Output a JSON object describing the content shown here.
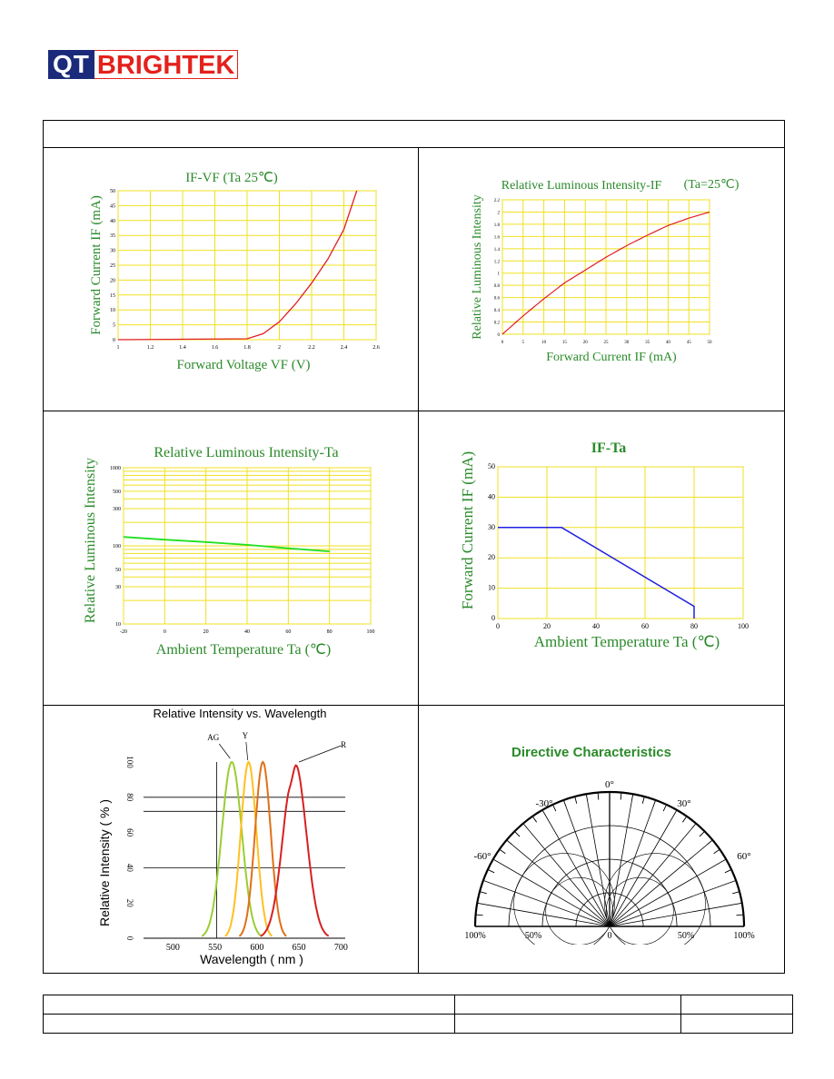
{
  "logo": {
    "part1": "QT",
    "part2": "BRIGHTEK"
  },
  "colors": {
    "grid_yellow": "#f0e020",
    "title_green": "#2a8a2a",
    "red": "#e02020",
    "green": "#20e020",
    "blue": "#2020e0"
  },
  "charts": {
    "ifvf": {
      "title": "IF-VF (Ta  25℃)",
      "xlabel": "Forward Voltage VF (V)",
      "ylabel": "Forward Current IF (mA)",
      "xticks": [
        "1",
        "1.2",
        "1.4",
        "1.6",
        "1.8",
        "2",
        "2.2",
        "2.4",
        "2.6"
      ],
      "yticks": [
        "0",
        "5",
        "10",
        "15",
        "20",
        "25",
        "30",
        "35",
        "40",
        "45",
        "50"
      ]
    },
    "rlif": {
      "title": "Relative Luminous Intensity-IF",
      "title2": "(Ta=25℃)",
      "xlabel": "Forward Current IF (mA)",
      "ylabel": "Relative Luminous Intensity",
      "xticks": [
        "0",
        "5",
        "10",
        "15",
        "20",
        "25",
        "30",
        "35",
        "40",
        "45",
        "50"
      ],
      "yticks": [
        "0",
        "0.2",
        "0.4",
        "0.6",
        "0.8",
        "1",
        "1.2",
        "1.4",
        "1.6",
        "1.8",
        "2",
        "2.2"
      ]
    },
    "rlta": {
      "title": "Relative Luminous Intensity-Ta",
      "xlabel": "Ambient Temperature Ta (℃)",
      "ylabel": "Relative Luminous Intensity",
      "xticks": [
        "-20",
        "0",
        "20",
        "40",
        "60",
        "80",
        "100"
      ],
      "yticks": [
        "10",
        "30",
        "50",
        "100",
        "300",
        "500",
        "1000"
      ]
    },
    "ifta": {
      "title": "IF-Ta",
      "xlabel": "Ambient Temperature Ta (℃)",
      "ylabel": "Forward Current IF (mA)",
      "xticks": [
        "0",
        "20",
        "40",
        "60",
        "80",
        "100"
      ],
      "yticks": [
        "0",
        "10",
        "20",
        "30",
        "40",
        "50"
      ]
    },
    "spectrum": {
      "title": "Relative Intensity vs. Wavelength",
      "xlabel": "Wavelength ( nm )",
      "ylabel": "Relative Intensity ( % )",
      "xticks": [
        "500",
        "550",
        "600",
        "650",
        "700"
      ],
      "yticks": [
        "0",
        "20",
        "40",
        "60",
        "80",
        "100"
      ],
      "labels": [
        "AG",
        "Y",
        "R"
      ]
    },
    "directive": {
      "title": "Directive Characteristics",
      "angle_labels": [
        "0°",
        "-30°",
        "30°",
        "-60°",
        "60°"
      ],
      "bottom_labels": [
        "100%",
        "50%",
        "0",
        "50%",
        "100%"
      ]
    }
  },
  "chart_data": [
    {
      "type": "line",
      "title": "IF-VF (Ta  25℃)",
      "xlabel": "Forward Voltage VF (V)",
      "ylabel": "Forward Current IF (mA)",
      "xlim": [
        1,
        2.6
      ],
      "ylim": [
        0,
        50
      ],
      "grid": true,
      "x": [
        1.0,
        1.8,
        1.9,
        2.0,
        2.1,
        2.2,
        2.3,
        2.4,
        2.48
      ],
      "y": [
        0,
        0.3,
        2,
        6,
        12,
        19,
        27,
        37,
        50
      ]
    },
    {
      "type": "line",
      "title": "Relative Luminous Intensity-IF (Ta=25℃)",
      "xlabel": "Forward Current IF (mA)",
      "ylabel": "Relative Luminous Intensity",
      "xlim": [
        0,
        50
      ],
      "ylim": [
        0,
        2.2
      ],
      "grid": true,
      "x": [
        0,
        5,
        10,
        15,
        20,
        25,
        30,
        35,
        40,
        45,
        50
      ],
      "y": [
        0,
        0.3,
        0.58,
        0.84,
        1.05,
        1.26,
        1.45,
        1.62,
        1.78,
        1.9,
        2.0
      ]
    },
    {
      "type": "line",
      "title": "Relative Luminous Intensity-Ta",
      "xlabel": "Ambient Temperature Ta (℃)",
      "ylabel": "Relative Luminous Intensity",
      "xlim": [
        -20,
        100
      ],
      "ylim": [
        10,
        1000
      ],
      "log_y": true,
      "grid": true,
      "x": [
        -20,
        0,
        20,
        40,
        60,
        80
      ],
      "y": [
        130,
        120,
        112,
        103,
        93,
        85
      ]
    },
    {
      "type": "line",
      "title": "IF-Ta",
      "xlabel": "Ambient Temperature Ta (℃)",
      "ylabel": "Forward Current IF (mA)",
      "xlim": [
        0,
        100
      ],
      "ylim": [
        0,
        50
      ],
      "grid": true,
      "x": [
        0,
        26,
        80,
        80
      ],
      "y": [
        30,
        30,
        4,
        0
      ]
    },
    {
      "type": "line",
      "title": "Relative Intensity vs. Wavelength",
      "xlabel": "Wavelength ( nm )",
      "ylabel": "Relative Intensity ( % )",
      "xlim": [
        465,
        705
      ],
      "ylim": [
        0,
        100
      ],
      "series": [
        {
          "name": "AG",
          "peak": 570,
          "fwhm": 28,
          "color": "#9acd32"
        },
        {
          "name": "Y",
          "peak": 590,
          "fwhm": 22,
          "color": "#ffc020"
        },
        {
          "name": "",
          "peak": 607,
          "fwhm": 22,
          "color": "#e07018"
        },
        {
          "name": "R",
          "peak": 645,
          "fwhm": 32,
          "color": "#d82020"
        }
      ]
    },
    {
      "type": "polar",
      "title": "Directive Characteristics",
      "angles": [
        -90,
        -60,
        -30,
        0,
        30,
        60,
        90
      ]
    }
  ]
}
